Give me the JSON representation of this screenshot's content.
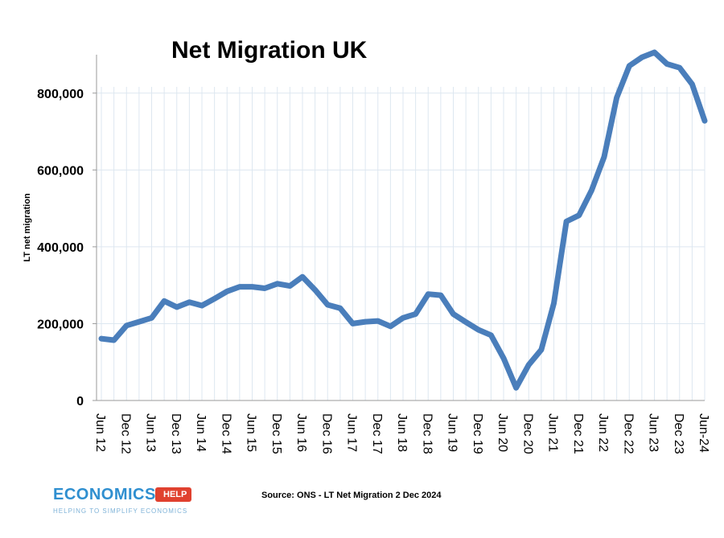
{
  "chart_data": {
    "type": "line",
    "title": "Net Migration UK",
    "ylabel": "LT net migration",
    "xlabel": "",
    "ylim": [
      0,
      900000
    ],
    "yticks": [
      0,
      200000,
      400000,
      600000,
      800000
    ],
    "ytick_labels": [
      "0",
      "200,000",
      "400,000",
      "600,000",
      "800,000"
    ],
    "x_tick_labels": [
      "Jun 12",
      "Dec 12",
      "Jun 13",
      "Dec 13",
      "Jun 14",
      "Dec 14",
      "Jun 15",
      "Dec 15",
      "Jun 16",
      "Dec 16",
      "Jun 17",
      "Dec 17",
      "Jun 18",
      "Dec 18",
      "Jun 19",
      "Dec 19",
      "Jun 20",
      "Dec 20",
      "Jun 21",
      "Dec 21",
      "Jun 22",
      "Dec 22",
      "Jun 23",
      "Dec 23",
      "Jun-24"
    ],
    "grid": true,
    "line_color": "#4a7ebb",
    "series": [
      {
        "values": [
          161000,
          157000,
          195000,
          205000,
          215000,
          259000,
          243000,
          256000,
          247000,
          265000,
          284000,
          296000,
          296000,
          292000,
          304000,
          298000,
          322000,
          288000,
          249000,
          240000,
          200000,
          205000,
          207000,
          193000,
          215000,
          225000,
          277000,
          274000,
          225000,
          204000,
          184000,
          170000,
          110000,
          33000,
          93000,
          132000,
          253000,
          466000,
          482000,
          547000,
          634000,
          788000,
          871000,
          893000,
          906000,
          876000,
          866000,
          823000,
          728000
        ]
      }
    ]
  },
  "source": "Source: ONS - LT Net Migration 2 Dec 2024",
  "logo": {
    "word": "ECONOMICS",
    "tag": "HELP",
    "subtitle": "HELPING TO SIMPLIFY ECONOMICS",
    "blue": "#2f8fd0",
    "red": "#e0412f"
  }
}
